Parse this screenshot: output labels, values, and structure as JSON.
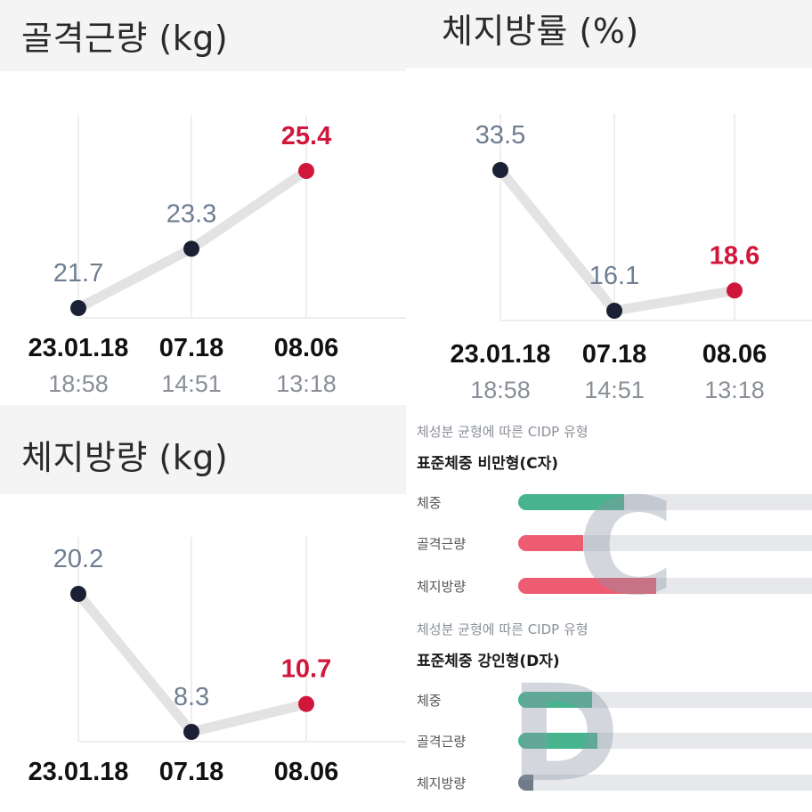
{
  "chart_data": [
    {
      "type": "line",
      "title": "골격근량 (kg)",
      "categories": [
        "23.01.18",
        "07.18",
        "08.06"
      ],
      "times": [
        "18:58",
        "14:51",
        "13:18"
      ],
      "values": [
        21.7,
        23.3,
        25.4
      ],
      "ylim": [
        19.5,
        27.5
      ],
      "grid": true,
      "highlight_last_color": "#d1163c"
    },
    {
      "type": "line",
      "title": "체지방률 (%)",
      "categories": [
        "23.01.18",
        "07.18",
        "08.06"
      ],
      "times": [
        "18:58",
        "14:51",
        "13:18"
      ],
      "values": [
        33.5,
        16.1,
        18.6
      ],
      "ylim": [
        13.5,
        38.0
      ],
      "grid": true,
      "highlight_last_color": "#d1163c"
    },
    {
      "type": "line",
      "title": "체지방량 (kg)",
      "categories": [
        "23.01.18",
        "07.18",
        "08.06"
      ],
      "values": [
        20.2,
        8.3,
        10.7
      ],
      "ylim": [
        6.3,
        25.0
      ],
      "grid": true,
      "highlight_last_color": "#d1163c"
    }
  ],
  "cidp": [
    {
      "caption": "체성분 균형에 따른 CIDP 유형",
      "type_label": "표준체중 비만형(C자)",
      "letter": "C",
      "rows": [
        {
          "label": "체중",
          "value": 0.36,
          "color": "green"
        },
        {
          "label": "골격근량",
          "value": 0.22,
          "color": "red"
        },
        {
          "label": "체지방량",
          "value": 0.47,
          "color": "red"
        }
      ]
    },
    {
      "caption": "체성분 균형에 따른 CIDP 유형",
      "type_label": "표준체중 강인형(D자)",
      "letter": "D",
      "rows": [
        {
          "label": "체중",
          "value": 0.25,
          "color": "green"
        },
        {
          "label": "골격근량",
          "value": 0.27,
          "color": "green"
        },
        {
          "label": "체지방량",
          "value": 0.05,
          "color": "gray"
        }
      ]
    }
  ],
  "colors": {
    "point": "#1b2135",
    "point_last": "#d1163c",
    "line": "#e3e3e3",
    "grid": "#eeeeee",
    "green": "#47b48f",
    "red": "#ee5c72",
    "gray": "#6f7a8a"
  }
}
